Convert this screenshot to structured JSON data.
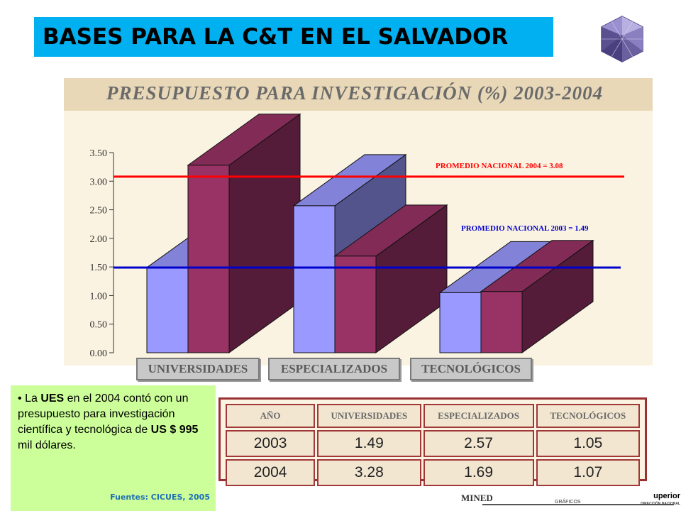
{
  "slide": {
    "title": "BASES PARA LA C&T EN EL SALVADOR"
  },
  "chart_data": {
    "type": "bar",
    "title": "PRESUPUESTO PARA INVESTIGACIÓN (%)  2003-2004",
    "categories": [
      "UNIVERSIDADES",
      "ESPECIALIZADOS",
      "TECNOLÓGICOS"
    ],
    "series": [
      {
        "name": "2003",
        "values": [
          1.49,
          2.57,
          1.05
        ],
        "color": "#9999ff"
      },
      {
        "name": "2004",
        "values": [
          3.28,
          1.69,
          1.07
        ],
        "color": "#993366"
      }
    ],
    "ylim": [
      0,
      3.5
    ],
    "yticks": [
      "0.00",
      "0.50",
      "1.00",
      "1.50",
      "2.00",
      "2.50",
      "3.00",
      "3.50"
    ],
    "reference_lines": [
      {
        "label": "PROMEDIO  NACIONAL  2004 =  3.08",
        "value": 3.08,
        "color": "#ff0000"
      },
      {
        "label": "PROMEDIO  NACIONAL  2003 = 1.49",
        "value": 1.49,
        "color": "#0000cc"
      }
    ],
    "grid": false,
    "legend": "none"
  },
  "table": {
    "headers": [
      "AÑO",
      "UNIVERSIDADES",
      "ESPECIALIZADOS",
      "TECNOLÓGICOS"
    ],
    "rows": [
      [
        "2003",
        "1.49",
        "2.57",
        "1.05"
      ],
      [
        "2004",
        "3.28",
        "1.69",
        "1.07"
      ]
    ]
  },
  "note": {
    "bullet": "•",
    "t1": "La ",
    "b1": "UES",
    "t2": " en el 2004 contó con un presupuesto para investigación  científica y tecnológica  de ",
    "b2": "US $ 995",
    "t3": " mil dólares.",
    "source": "Fuentes: CICUES, 2005"
  },
  "footer": {
    "logo1": "MINED",
    "logo2": "GRÁFICOS",
    "logo3": "uperior",
    "logo3_sub": "DIRECCIÓN NACIONAL"
  }
}
